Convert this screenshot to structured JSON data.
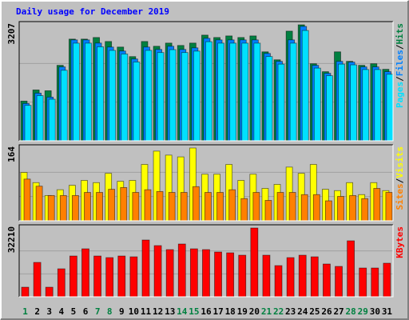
{
  "title": "Daily usage for December 2019",
  "legend_separator": "/",
  "chart_data": [
    {
      "type": "bar",
      "categories": [
        "1",
        "2",
        "3",
        "4",
        "5",
        "6",
        "7",
        "8",
        "9",
        "10",
        "11",
        "12",
        "13",
        "14",
        "15",
        "16",
        "17",
        "18",
        "19",
        "20",
        "21",
        "22",
        "23",
        "24",
        "25",
        "26",
        "27",
        "28",
        "29",
        "30",
        "31"
      ],
      "weekend": [
        0,
        6,
        7,
        13,
        14,
        20,
        21,
        27,
        28
      ],
      "weekend_color": "#008040",
      "series": [
        {
          "name": "Hits",
          "color": "#008040",
          "values": [
            1098,
            1406,
            1384,
            2087,
            2812,
            2812,
            2856,
            2746,
            2592,
            2328,
            2746,
            2614,
            2702,
            2636,
            2702,
            2922,
            2856,
            2900,
            2856,
            2900,
            2460,
            2240,
            3032,
            3207,
            2131,
            1911,
            2460,
            2197,
            2087,
            2131,
            1977
          ]
        },
        {
          "name": "Files",
          "color": "#0080ff",
          "values": [
            1032,
            1318,
            1208,
            2043,
            2790,
            2790,
            2702,
            2592,
            2482,
            2262,
            2592,
            2526,
            2614,
            2526,
            2570,
            2834,
            2790,
            2790,
            2790,
            2790,
            2416,
            2197,
            2790,
            3163,
            2087,
            1867,
            2197,
            2175,
            2043,
            2043,
            1911
          ]
        },
        {
          "name": "Pages",
          "color": "#00e0ff",
          "values": [
            980,
            1250,
            1150,
            1950,
            2700,
            2700,
            2600,
            2500,
            2400,
            2180,
            2500,
            2440,
            2520,
            2440,
            2480,
            2740,
            2700,
            2700,
            2700,
            2700,
            2330,
            2120,
            2700,
            3050,
            2010,
            1800,
            2120,
            2100,
            1970,
            1970,
            1840
          ]
        }
      ],
      "ylim": [
        0,
        3207
      ],
      "yticks": [
        3207
      ]
    },
    {
      "type": "bar",
      "series": [
        {
          "name": "Visits",
          "color": "#ffff00",
          "values": [
            109,
            86,
            57,
            70,
            80,
            91,
            86,
            107,
            89,
            91,
            127,
            157,
            148,
            144,
            164,
            105,
            105,
            127,
            91,
            105,
            73,
            82,
            121,
            107,
            127,
            71,
            68,
            86,
            59,
            86,
            68
          ]
        },
        {
          "name": "Sites",
          "color": "#ff8000",
          "values": [
            94,
            78,
            57,
            57,
            57,
            64,
            64,
            71,
            75,
            64,
            70,
            66,
            64,
            64,
            77,
            64,
            64,
            70,
            50,
            64,
            46,
            64,
            64,
            59,
            59,
            45,
            55,
            57,
            50,
            73,
            64
          ]
        }
      ],
      "ylim": [
        0,
        164
      ],
      "yticks": [
        164
      ]
    },
    {
      "type": "bar",
      "series": [
        {
          "name": "KBytes",
          "color": "#ff0000",
          "values": [
            4494,
            16105,
            4494,
            13108,
            19100,
            22472,
            19100,
            18351,
            19100,
            18726,
            26591,
            23969,
            22097,
            24718,
            22472,
            22097,
            20973,
            20598,
            19475,
            32210,
            19475,
            14606,
            18351,
            19475,
            18726,
            15355,
            14231,
            26216,
            13483,
            13483,
            15730
          ]
        }
      ],
      "ylim": [
        0,
        32210
      ],
      "yticks": [
        32210
      ]
    }
  ]
}
